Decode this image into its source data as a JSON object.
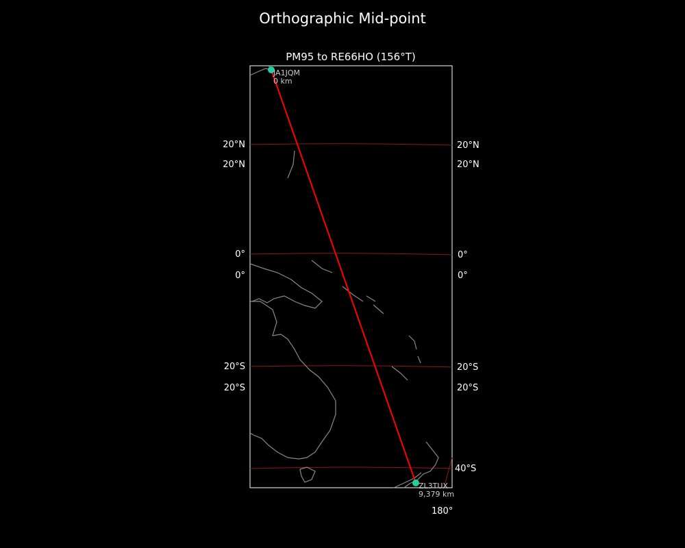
{
  "figure_title": "Orthographic Mid-point",
  "axes_title": "PM95 to RE66HO (156°T)",
  "colors": {
    "background": "#000000",
    "path": "#ff0000",
    "station": "#20d0a0",
    "gridline": "#8b1a1a",
    "coastline": "#8a8a8a"
  },
  "gridline_labels": {
    "left": [
      "20°N",
      "20°N",
      "0°",
      "0°",
      "20°S",
      "20°S"
    ],
    "right": [
      "20°N",
      "20°N",
      "0°",
      "0°",
      "20°S",
      "20°S",
      "40°S"
    ],
    "bottom": [
      "180°"
    ]
  },
  "stations": [
    {
      "call": "JA1JQM",
      "distance": "0 km"
    },
    {
      "call": "ZL3TUX",
      "distance": "9,379 km"
    }
  ]
}
